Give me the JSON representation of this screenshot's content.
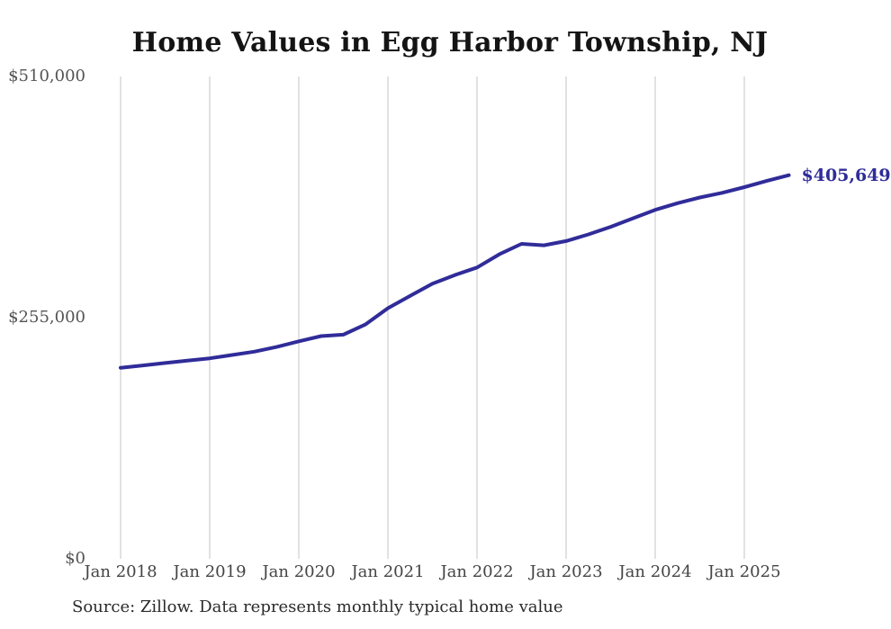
{
  "colors": {
    "background": "#ffffff",
    "line": "#302c99",
    "grid": "#c4c4c4",
    "title_text": "#141414",
    "tick_text": "#545454",
    "source_text": "#2a2a2a"
  },
  "chart_data": {
    "type": "line",
    "title": "Home Values in Egg Harbor Township, NJ",
    "xlabel": "",
    "ylabel": "",
    "x": [
      "Jan 2018",
      "Apr 2018",
      "Jul 2018",
      "Oct 2018",
      "Jan 2019",
      "Apr 2019",
      "Jul 2019",
      "Oct 2019",
      "Jan 2020",
      "Apr 2020",
      "Jul 2020",
      "Oct 2020",
      "Jan 2021",
      "Apr 2021",
      "Jul 2021",
      "Oct 2021",
      "Jan 2022",
      "Apr 2022",
      "Jul 2022",
      "Oct 2022",
      "Jan 2023",
      "Apr 2023",
      "Jul 2023",
      "Oct 2023",
      "Jan 2024",
      "Apr 2024",
      "Jul 2024",
      "Oct 2024",
      "Jan 2025",
      "Apr 2025",
      "Jul 2025"
    ],
    "values": [
      202000,
      204500,
      207000,
      209500,
      212000,
      215500,
      219000,
      224000,
      230000,
      235500,
      237000,
      248000,
      265000,
      278000,
      291000,
      300000,
      308000,
      322000,
      333000,
      331500,
      336000,
      343000,
      351000,
      360000,
      369000,
      376000,
      382000,
      387000,
      393000,
      399500,
      405649
    ],
    "series_name": "Typical home value",
    "x_tick_labels": [
      "Jan 2018",
      "Jan 2019",
      "Jan 2020",
      "Jan 2021",
      "Jan 2022",
      "Jan 2023",
      "Jan 2024",
      "Jan 2025"
    ],
    "y_ticks": [
      {
        "label": "$0",
        "value": 0
      },
      {
        "label": "$255,000",
        "value": 255000
      },
      {
        "label": "$510,000",
        "value": 510000
      }
    ],
    "ylim": [
      0,
      510000
    ],
    "grid": "vertical-only",
    "legend": "none",
    "final_value_annotation": "$405,649",
    "source": "Source: Zillow. Data represents monthly typical home value"
  }
}
